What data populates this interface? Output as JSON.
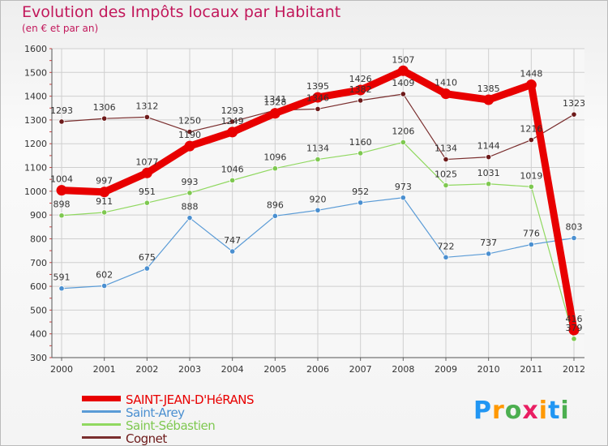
{
  "header": {
    "title": "Evolution des Impôts locaux par Habitant",
    "subtitle": "(en € et par an)"
  },
  "logo": {
    "text": "Proxiti",
    "letters": [
      "P",
      "r",
      "o",
      "x",
      "i",
      "t",
      "i"
    ],
    "colors": [
      "#2196f3",
      "#ff9800",
      "#4caf50",
      "#e91e63",
      "#ff9800",
      "#2196f3",
      "#4caf50"
    ]
  },
  "chart_data": {
    "type": "line",
    "title": "Evolution des Impôts locaux par Habitant",
    "subtitle": "(en € et par an)",
    "xlabel": "",
    "ylabel": "",
    "x": [
      "2000",
      "2001",
      "2002",
      "2003",
      "2004",
      "2005",
      "2006",
      "2007",
      "2008",
      "2009",
      "2010",
      "2011",
      "2012"
    ],
    "ylim": [
      300,
      1600
    ],
    "yticks": [
      300,
      400,
      500,
      600,
      700,
      800,
      900,
      1000,
      1100,
      1200,
      1300,
      1400,
      1500,
      1600
    ],
    "grid": true,
    "legend_position": "bottom-left",
    "series": [
      {
        "name": "Cognet",
        "color": "#6d1a1a",
        "line_color": "#7a2e2e",
        "values": [
          1293,
          1306,
          1312,
          1250,
          1293,
          1341,
          1346,
          1382,
          1409,
          1134,
          1144,
          1216,
          1323
        ],
        "labels": [
          "1293",
          "1306",
          "1312",
          "1250",
          "1293",
          "1341",
          "1346",
          "1382",
          "1409",
          "1134",
          "1144",
          "1216",
          "1323"
        ]
      },
      {
        "name": "Saint-Sébastien",
        "color": "#7ec850",
        "line_color": "#90d860",
        "values": [
          898,
          911,
          951,
          993,
          1046,
          1096,
          1134,
          1160,
          1206,
          1025,
          1031,
          1019,
          379
        ],
        "labels": [
          "898",
          "911",
          "951",
          "993",
          "1046",
          "1096",
          "1134",
          "1160",
          "1206",
          "1025",
          "1031",
          "1019",
          "379"
        ]
      },
      {
        "name": "Saint-Arey",
        "color": "#4a8fd0",
        "line_color": "#5a9bd6",
        "values": [
          591,
          602,
          675,
          888,
          747,
          896,
          920,
          952,
          973,
          722,
          737,
          776,
          803
        ],
        "labels": [
          "591",
          "602",
          "675",
          "888",
          "747",
          "896",
          "920",
          "952",
          "973",
          "722",
          "737",
          "776",
          "803"
        ]
      },
      {
        "name": "SAINT-JEAN-D'HéRANS",
        "color": "#e80000",
        "line_color": "#e80000",
        "values": [
          1004,
          997,
          1077,
          1190,
          1249,
          1328,
          1395,
          1426,
          1507,
          1410,
          1385,
          1448,
          416
        ],
        "labels": [
          "1004",
          "997",
          "1077",
          "1190",
          "1249",
          "1328",
          "1395",
          "1426",
          "1507",
          "1410",
          "1385",
          "1448",
          "416"
        ]
      }
    ],
    "legend_order": [
      "SAINT-JEAN-D'HéRANS",
      "Saint-Arey",
      "Saint-Sébastien",
      "Cognet"
    ]
  }
}
